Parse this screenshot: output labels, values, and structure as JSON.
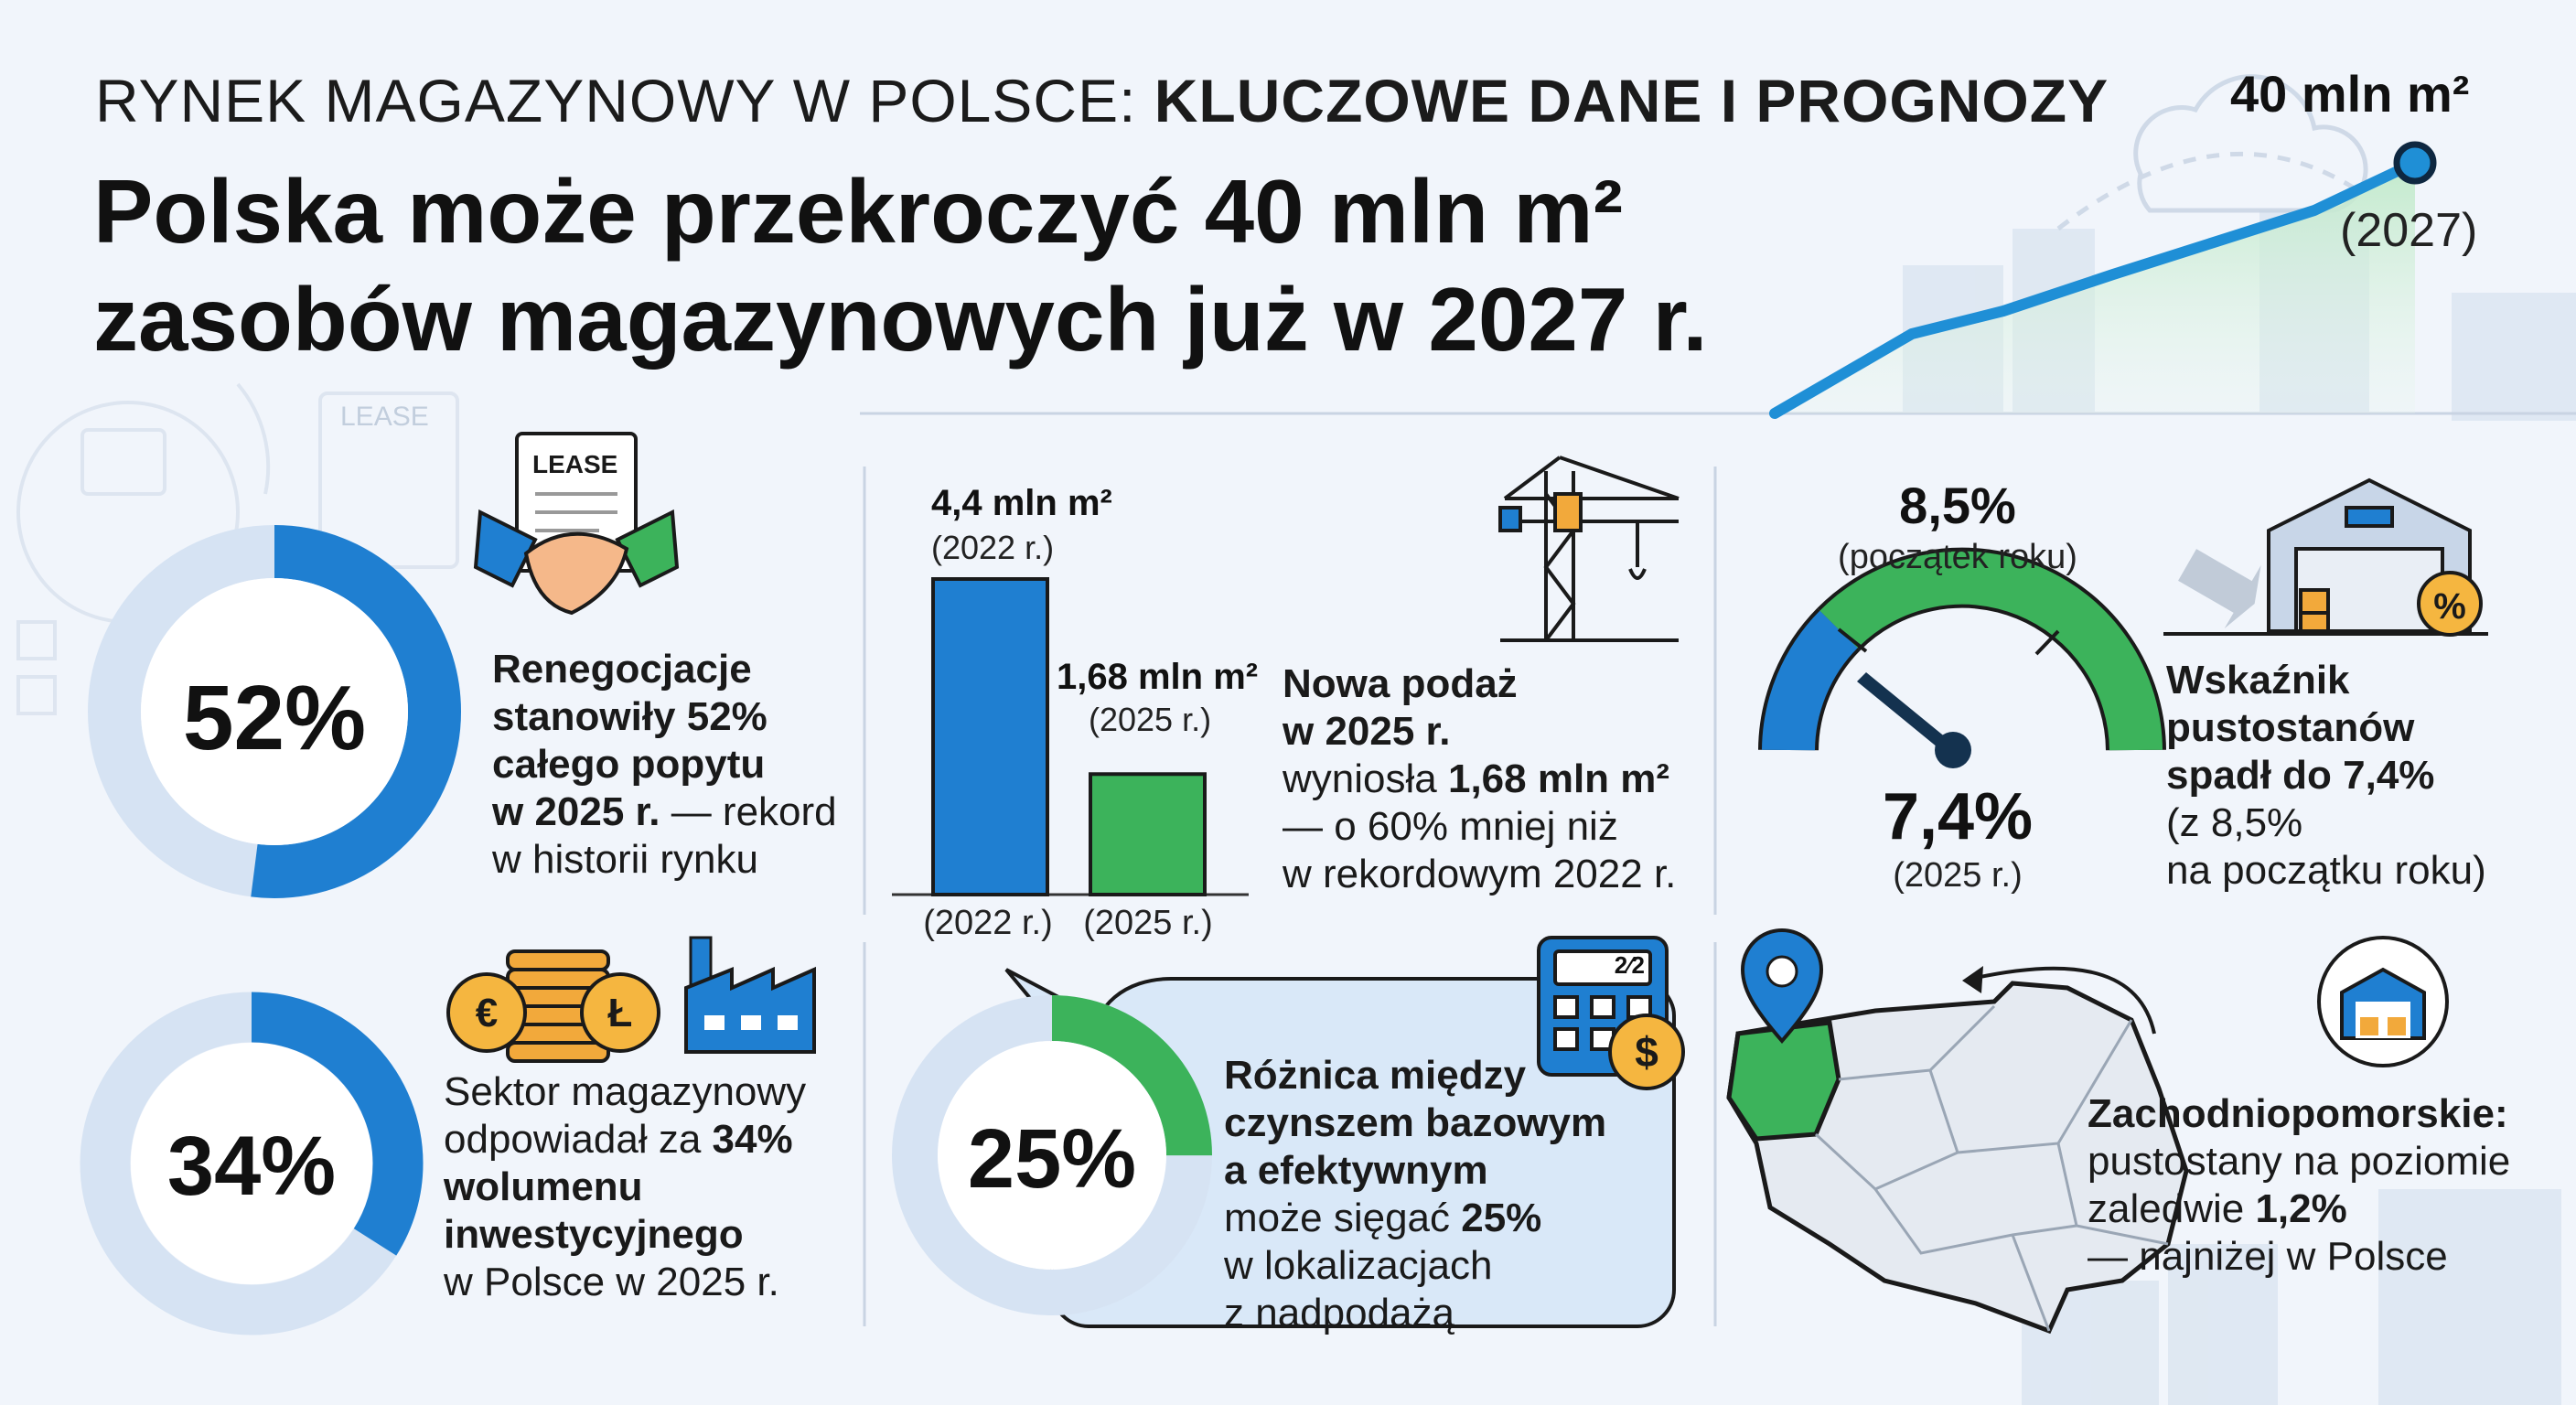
{
  "header": {
    "kicker_prefix": "RYNEK MAGAZYNOWY W POLSCE: ",
    "kicker_bold": "KLUCZOWE DANE I PROGNOZY",
    "headline_line1": "Polska może przekroczyć 40 mln m²",
    "headline_line2": "zasobów magazynowych już w 2027 r."
  },
  "trend": {
    "value": "40 mln m²",
    "year": "(2027)",
    "colors": {
      "line": "#1f8fd6",
      "fill": "#c9ecd2",
      "point": "#1565a8"
    }
  },
  "renegotiation": {
    "percent_label": "52%",
    "percent_value": 52,
    "lease_label": "LEASE",
    "line1": "Renegocjacje",
    "line2": "stanowiły 52%",
    "line3": "całego popytu",
    "line4_bold": "w 2025 r.",
    "line4_rest": " — rekord",
    "line5": "w historii rynku",
    "icons": [
      "lease-document-icon",
      "handshake-icon"
    ]
  },
  "investment": {
    "percent_label": "34%",
    "percent_value": 34,
    "line1": "Sektor magazynowy",
    "line2_prefix": "odpowiadał za ",
    "line2_bold": "34%",
    "line3": "wolumenu",
    "line4": "inwestycyjnego",
    "line5": "w Polsce w 2025 r.",
    "icons": [
      "coins-icon",
      "factory-icon"
    ]
  },
  "supply": {
    "chart_data": {
      "type": "bar",
      "categories": [
        "(2022 r.)",
        "(2025 r.)"
      ],
      "values": [
        4.4,
        1.68
      ],
      "value_labels": [
        "4,4 mln m²",
        "1,68 mln m²"
      ],
      "value_sublabels": [
        "(2022 r.)",
        "(2025 r.)"
      ],
      "colors": [
        "#1f7fd1",
        "#3cb35b"
      ]
    },
    "title1": "Nowa podaż",
    "title2": "w 2025 r.",
    "line3_prefix": "wyniosła ",
    "line3_bold": "1,68 mln m²",
    "line4": "— o 60% mniej niż",
    "line5": "w rekordowym 2022 r.",
    "icons": [
      "crane-icon"
    ]
  },
  "rent": {
    "percent_label": "25%",
    "percent_value": 25,
    "calc_display": "2⁄2",
    "line1": "Różnica między",
    "line2": "czynszem bazowym",
    "line3": "a efektywnym",
    "line4_prefix": "może sięgać ",
    "line4_bold": "25%",
    "line5": "w lokalizacjach",
    "line6": "z nadpodażą",
    "icons": [
      "calculator-icon",
      "dollar-coin-icon"
    ]
  },
  "vacancy": {
    "start_label": "8,5%",
    "start_note": "(początek roku)",
    "current_label": "7,4%",
    "current_note": "(2025 r.)",
    "start_value": 8.5,
    "current_value": 7.4,
    "title1": "Wskaźnik",
    "title2": "pustostanów",
    "title3": "spadł do 7,4%",
    "line4": "(z 8,5%",
    "line5": "na początku roku)",
    "icons": [
      "gauge-icon",
      "warehouse-icon",
      "percent-icon",
      "down-arrow-icon"
    ]
  },
  "region": {
    "title": "Zachodniopomorskie:",
    "line2": "pustostany na poziomie",
    "line3_prefix": "zaledwie ",
    "line3_bold": "1,2%",
    "line4": "— najniżej w Polsce",
    "icons": [
      "map-pin-icon",
      "poland-map-icon",
      "warehouse-circle-icon"
    ]
  }
}
